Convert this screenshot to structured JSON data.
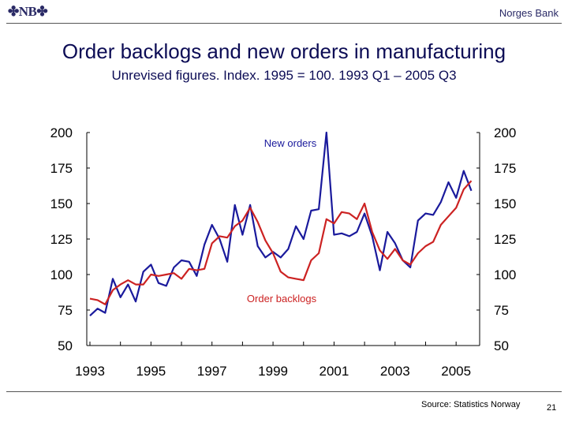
{
  "header": {
    "logo_text": "✤NB✤",
    "bank_name": "Norges Bank"
  },
  "slide": {
    "title": "Order backlogs and new orders in manufacturing",
    "subtitle": "Unrevised figures. Index. 1995 = 100. 1993 Q1 – 2005 Q3"
  },
  "footer": {
    "source": "Source: Statistics Norway",
    "page_number": "21"
  },
  "chart_data": {
    "type": "line",
    "title": "Order backlogs and new orders in manufacturing",
    "subtitle": "Unrevised figures. Index. 1995 = 100. 1993 Q1 – 2005 Q3",
    "x": [
      "1993 Q1",
      "1993 Q2",
      "1993 Q3",
      "1993 Q4",
      "1994 Q1",
      "1994 Q2",
      "1994 Q3",
      "1994 Q4",
      "1995 Q1",
      "1995 Q2",
      "1995 Q3",
      "1995 Q4",
      "1996 Q1",
      "1996 Q2",
      "1996 Q3",
      "1996 Q4",
      "1997 Q1",
      "1997 Q2",
      "1997 Q3",
      "1997 Q4",
      "1998 Q1",
      "1998 Q2",
      "1998 Q3",
      "1998 Q4",
      "1999 Q1",
      "1999 Q2",
      "1999 Q3",
      "1999 Q4",
      "2000 Q1",
      "2000 Q2",
      "2000 Q3",
      "2000 Q4",
      "2001 Q1",
      "2001 Q2",
      "2001 Q3",
      "2001 Q4",
      "2002 Q1",
      "2002 Q2",
      "2002 Q3",
      "2002 Q4",
      "2003 Q1",
      "2003 Q2",
      "2003 Q3",
      "2003 Q4",
      "2004 Q1",
      "2004 Q2",
      "2004 Q3",
      "2004 Q4",
      "2005 Q1",
      "2005 Q2",
      "2005 Q3"
    ],
    "x_tick_labels": [
      "1993",
      "1995",
      "1997",
      "1999",
      "2001",
      "2003",
      "2005"
    ],
    "ylim": [
      50,
      200
    ],
    "y_ticks": [
      50,
      75,
      100,
      125,
      150,
      175,
      200
    ],
    "grid": false,
    "series": [
      {
        "name": "New orders",
        "color": "#1a1a9c",
        "values": [
          71,
          76,
          73,
          97,
          84,
          93,
          81,
          102,
          107,
          94,
          92,
          105,
          110,
          109,
          99,
          121,
          135,
          125,
          109,
          149,
          128,
          149,
          120,
          112,
          116,
          112,
          118,
          134,
          125,
          145,
          146,
          200,
          128,
          129,
          127,
          130,
          143,
          127,
          103,
          130,
          122,
          110,
          105,
          138,
          143,
          142,
          151,
          165,
          154,
          173,
          159
        ]
      },
      {
        "name": "Order backlogs",
        "color": "#cc2222",
        "values": [
          83,
          82,
          79,
          89,
          93,
          96,
          93,
          93,
          100,
          99,
          100,
          101,
          97,
          104,
          103,
          104,
          122,
          127,
          126,
          134,
          138,
          147,
          137,
          124,
          115,
          102,
          98,
          97,
          96,
          110,
          115,
          139,
          136,
          144,
          143,
          139,
          150,
          130,
          117,
          111,
          118,
          110,
          107,
          115,
          120,
          123,
          135,
          141,
          147,
          160,
          166
        ]
      }
    ]
  }
}
